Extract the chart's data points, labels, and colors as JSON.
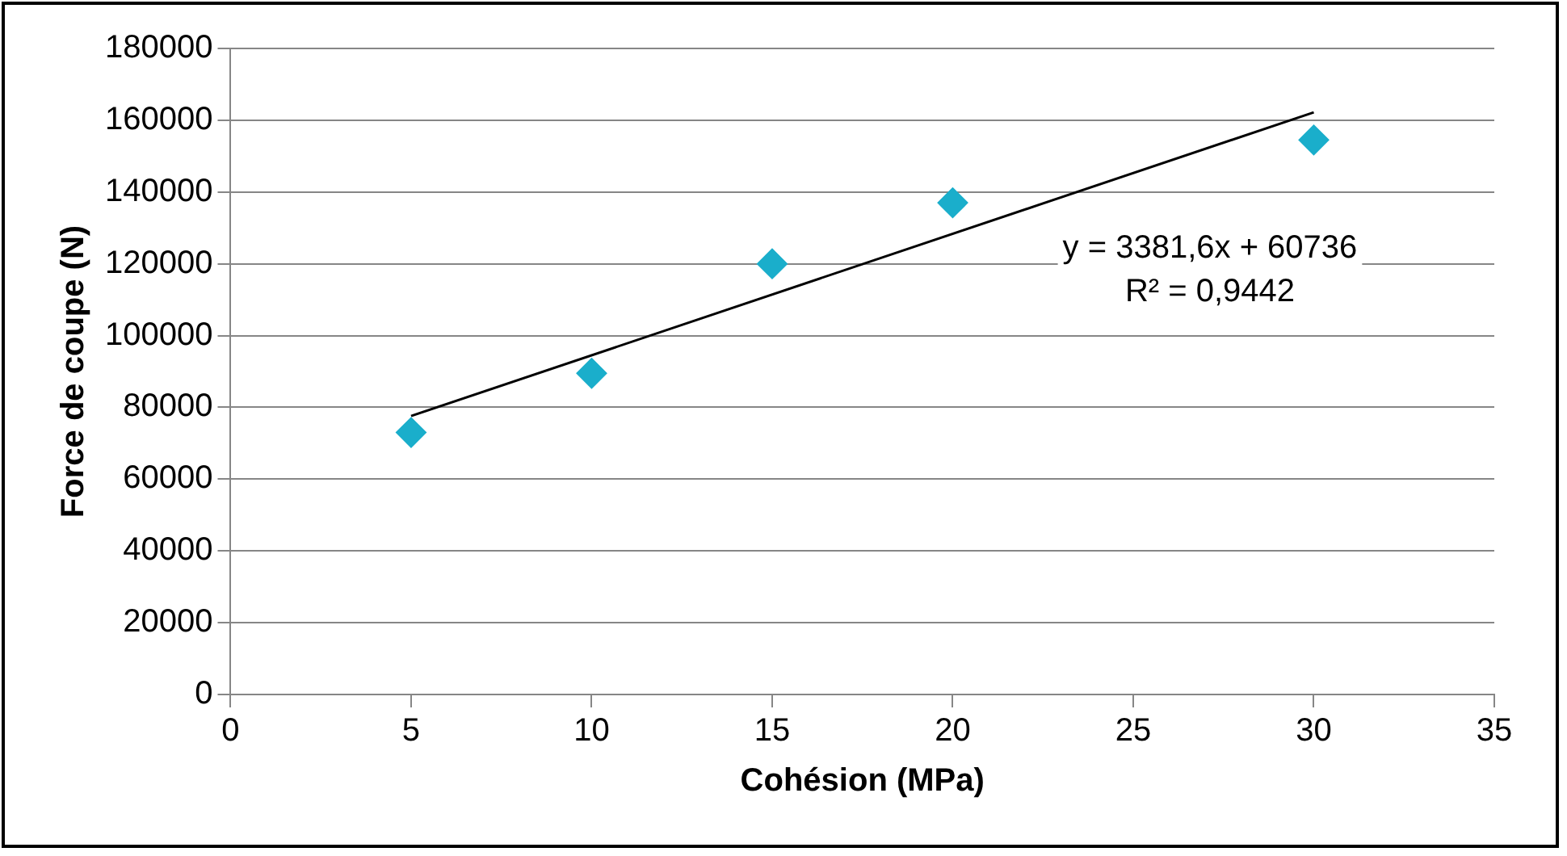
{
  "chart_data": {
    "type": "scatter",
    "xlabel": "Cohésion (MPa)",
    "ylabel": "Force de coupe (N)",
    "xlim": [
      0,
      35
    ],
    "xticks": [
      0,
      5,
      10,
      15,
      20,
      25,
      30,
      35
    ],
    "ylim": [
      0,
      180000
    ],
    "yticks": [
      0,
      20000,
      40000,
      60000,
      80000,
      100000,
      120000,
      140000,
      160000,
      180000
    ],
    "grid": "y",
    "marker": "diamond",
    "series": [
      {
        "color": "#1aaecb",
        "x": [
          5,
          10,
          15,
          20,
          30
        ],
        "values": [
          73000,
          89500,
          120000,
          137000,
          154500
        ]
      },
      {
        "type": "line",
        "color": "#000000",
        "line_style": "solid",
        "marker": "none",
        "x": [
          5,
          30
        ],
        "values": [
          77600,
          162200
        ]
      }
    ],
    "annotations": [
      "y = 3381,6x + 60736",
      "R² = 0,9442"
    ]
  }
}
